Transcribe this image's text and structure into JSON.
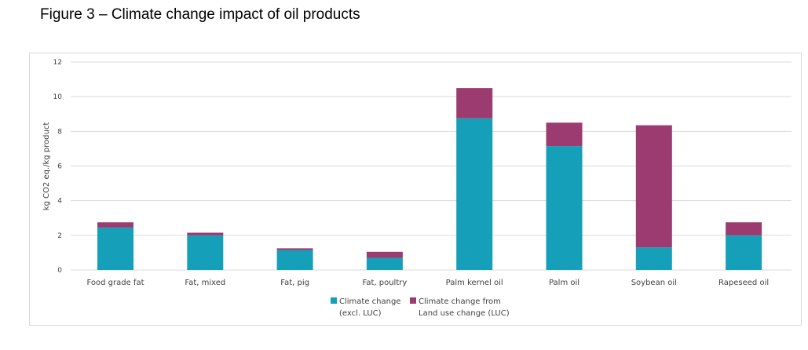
{
  "figure": {
    "title": "Figure 3 – Climate change impact of oil products"
  },
  "colors": {
    "base": "#159fb8",
    "luc": "#9b3b6f",
    "grid": "#d9d9d9",
    "text": "#404040"
  },
  "legend": {
    "base_line1": "Climate change",
    "base_line2": "(excl. LUC)",
    "luc_line1": "Climate change from",
    "luc_line2": "Land use change (LUC)"
  },
  "chart_data": {
    "type": "bar",
    "stacked": true,
    "title": "",
    "xlabel": "",
    "ylabel": "kg CO2 eq./kg product",
    "ylim": [
      0,
      12
    ],
    "yticks": [
      0,
      2,
      4,
      6,
      8,
      10,
      12
    ],
    "grid": true,
    "legend_position": "bottom",
    "categories": [
      "Food grade fat",
      "Fat, mixed",
      "Fat, pig",
      "Fat, poultry",
      "Palm kernel oil",
      "Palm oil",
      "Soybean oil",
      "Rapeseed oil"
    ],
    "series": [
      {
        "name": "Climate change (excl. LUC)",
        "values": [
          2.45,
          2.0,
          1.15,
          0.7,
          8.75,
          7.15,
          1.3,
          2.0
        ]
      },
      {
        "name": "Climate change from Land use change (LUC)",
        "values": [
          0.3,
          0.15,
          0.1,
          0.35,
          1.75,
          1.35,
          7.05,
          0.75
        ]
      }
    ]
  }
}
